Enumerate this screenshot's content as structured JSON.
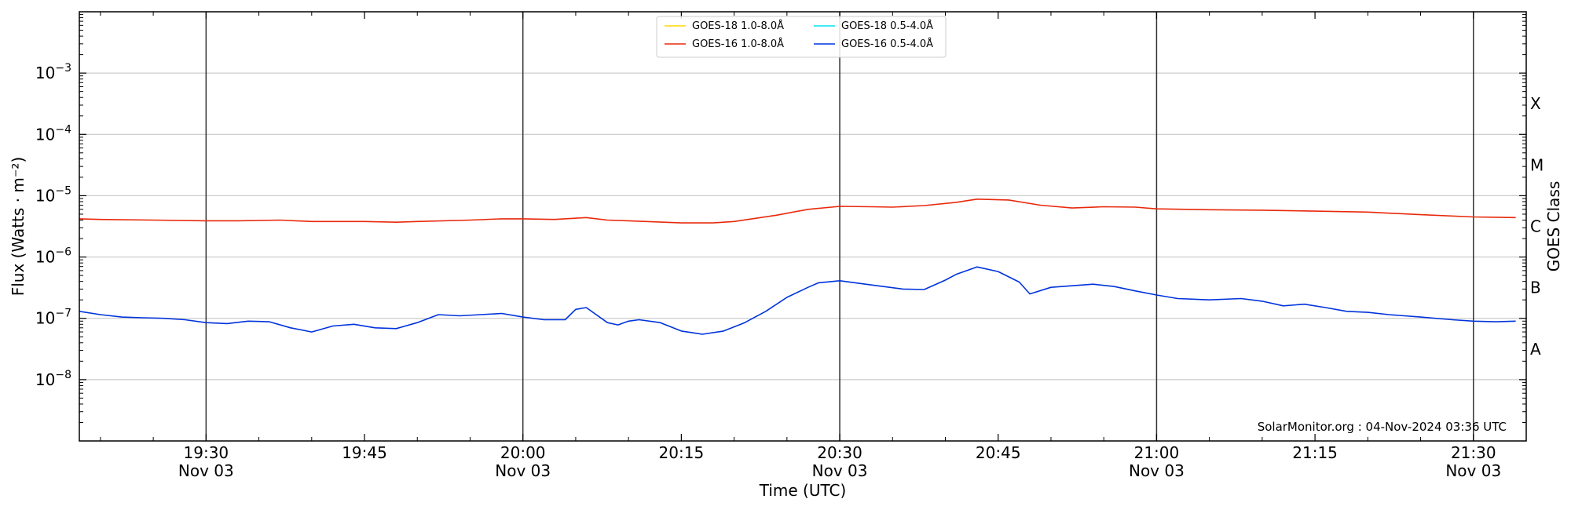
{
  "chart_data": {
    "type": "line",
    "xlabel": "Time (UTC)",
    "ylabel": "Flux (Watts · m⁻²)",
    "ylabel_right": "GOES Class",
    "credit": "SolarMonitor.org : 04-Nov-2024 03:36 UTC",
    "y_scale": "log",
    "ylim": [
      1e-09,
      0.01
    ],
    "xlim": [
      "2024-11-03T19:18",
      "2024-11-03T21:35"
    ],
    "x_ticks": [
      {
        "time": "19:30",
        "date": "Nov 03"
      },
      {
        "time": "19:45",
        "date": ""
      },
      {
        "time": "20:00",
        "date": "Nov 03"
      },
      {
        "time": "20:15",
        "date": ""
      },
      {
        "time": "20:30",
        "date": "Nov 03"
      },
      {
        "time": "20:45",
        "date": ""
      },
      {
        "time": "21:00",
        "date": "Nov 03"
      },
      {
        "time": "21:15",
        "date": ""
      },
      {
        "time": "21:30",
        "date": "Nov 03"
      }
    ],
    "y_ticks": [
      {
        "value": 1e-08,
        "base": "10",
        "exp": "−8"
      },
      {
        "value": 1e-07,
        "base": "10",
        "exp": "−7"
      },
      {
        "value": 1e-06,
        "base": "10",
        "exp": "−6"
      },
      {
        "value": 1e-05,
        "base": "10",
        "exp": "−5"
      },
      {
        "value": 0.0001,
        "base": "10",
        "exp": "−4"
      },
      {
        "value": 0.001,
        "base": "10",
        "exp": "−3"
      }
    ],
    "vlines": [
      "19:30",
      "20:00",
      "20:30",
      "21:00",
      "21:30"
    ],
    "goes_classes": [
      {
        "label": "A",
        "value": 3.16e-08
      },
      {
        "label": "B",
        "value": 3.16e-07
      },
      {
        "label": "C",
        "value": 3.16e-06
      },
      {
        "label": "M",
        "value": 3.16e-05
      },
      {
        "label": "X",
        "value": 0.000316
      }
    ],
    "legend_position": "top-center",
    "series": [
      {
        "name": "GOES-18 1.0-8.0Å",
        "color": "#ffd700",
        "x": [],
        "y": []
      },
      {
        "name": "GOES-18 0.5-4.0Å",
        "color": "#00e5ee",
        "x": [],
        "y": []
      },
      {
        "name": "GOES-16 1.0-8.0Å",
        "color": "#e8290b",
        "x": [
          "19:18",
          "19:20",
          "19:25",
          "19:30",
          "19:33",
          "19:37",
          "19:40",
          "19:42",
          "19:45",
          "19:48",
          "19:50",
          "19:55",
          "19:58",
          "20:00",
          "20:03",
          "20:06",
          "20:08",
          "20:10",
          "20:15",
          "20:18",
          "20:20",
          "20:24",
          "20:27",
          "20:30",
          "20:33",
          "20:35",
          "20:38",
          "20:41",
          "20:43",
          "20:46",
          "20:49",
          "20:52",
          "20:55",
          "20:58",
          "21:00",
          "21:05",
          "21:10",
          "21:15",
          "21:20",
          "21:25",
          "21:30",
          "21:34"
        ],
        "y": [
          4.2e-06,
          4.1e-06,
          4e-06,
          3.9e-06,
          3.9e-06,
          4e-06,
          3.8e-06,
          3.8e-06,
          3.8e-06,
          3.7e-06,
          3.8e-06,
          4e-06,
          4.2e-06,
          4.2e-06,
          4.1e-06,
          4.4e-06,
          4e-06,
          3.9e-06,
          3.6e-06,
          3.6e-06,
          3.8e-06,
          4.8e-06,
          6e-06,
          6.7e-06,
          6.6e-06,
          6.5e-06,
          6.9e-06,
          7.8e-06,
          8.8e-06,
          8.5e-06,
          7e-06,
          6.3e-06,
          6.6e-06,
          6.5e-06,
          6.1e-06,
          5.9e-06,
          5.8e-06,
          5.6e-06,
          5.4e-06,
          4.9e-06,
          4.5e-06,
          4.4e-06
        ]
      },
      {
        "name": "GOES-16 0.5-4.0Å",
        "color": "#0033dd",
        "x": [
          "19:18",
          "19:20",
          "19:22",
          "19:24",
          "19:26",
          "19:28",
          "19:30",
          "19:32",
          "19:34",
          "19:36",
          "19:38",
          "19:40",
          "19:42",
          "19:44",
          "19:46",
          "19:48",
          "19:50",
          "19:52",
          "19:54",
          "19:56",
          "19:58",
          "20:00",
          "20:02",
          "20:04",
          "20:05",
          "20:06",
          "20:08",
          "20:09",
          "20:10",
          "20:11",
          "20:13",
          "20:15",
          "20:17",
          "20:19",
          "20:21",
          "20:23",
          "20:25",
          "20:27",
          "20:28",
          "20:30",
          "20:33",
          "20:36",
          "20:38",
          "20:40",
          "20:41",
          "20:43",
          "20:45",
          "20:47",
          "20:48",
          "20:50",
          "20:52",
          "20:54",
          "20:56",
          "20:58",
          "21:00",
          "21:02",
          "21:05",
          "21:08",
          "21:10",
          "21:12",
          "21:14",
          "21:16",
          "21:18",
          "21:20",
          "21:22",
          "21:25",
          "21:28",
          "21:30",
          "21:32",
          "21:34"
        ],
        "y": [
          1.3e-07,
          1.15e-07,
          1.05e-07,
          1.02e-07,
          1e-07,
          9.5e-08,
          8.5e-08,
          8.2e-08,
          9e-08,
          8.8e-08,
          7e-08,
          6e-08,
          7.5e-08,
          8e-08,
          7e-08,
          6.8e-08,
          8.5e-08,
          1.15e-07,
          1.1e-07,
          1.15e-07,
          1.2e-07,
          1.05e-07,
          9.5e-08,
          9.5e-08,
          1.4e-07,
          1.5e-07,
          8.5e-08,
          7.8e-08,
          9e-08,
          9.5e-08,
          8.5e-08,
          6.2e-08,
          5.5e-08,
          6.2e-08,
          8.5e-08,
          1.3e-07,
          2.2e-07,
          3.2e-07,
          3.8e-07,
          4.1e-07,
          3.5e-07,
          3e-07,
          2.95e-07,
          4.2e-07,
          5.2e-07,
          6.9e-07,
          5.8e-07,
          3.9e-07,
          2.5e-07,
          3.2e-07,
          3.4e-07,
          3.6e-07,
          3.3e-07,
          2.8e-07,
          2.4e-07,
          2.1e-07,
          2e-07,
          2.1e-07,
          1.9e-07,
          1.6e-07,
          1.7e-07,
          1.5e-07,
          1.3e-07,
          1.25e-07,
          1.15e-07,
          1.05e-07,
          9.5e-08,
          9e-08,
          8.8e-08,
          9e-08
        ]
      }
    ]
  }
}
